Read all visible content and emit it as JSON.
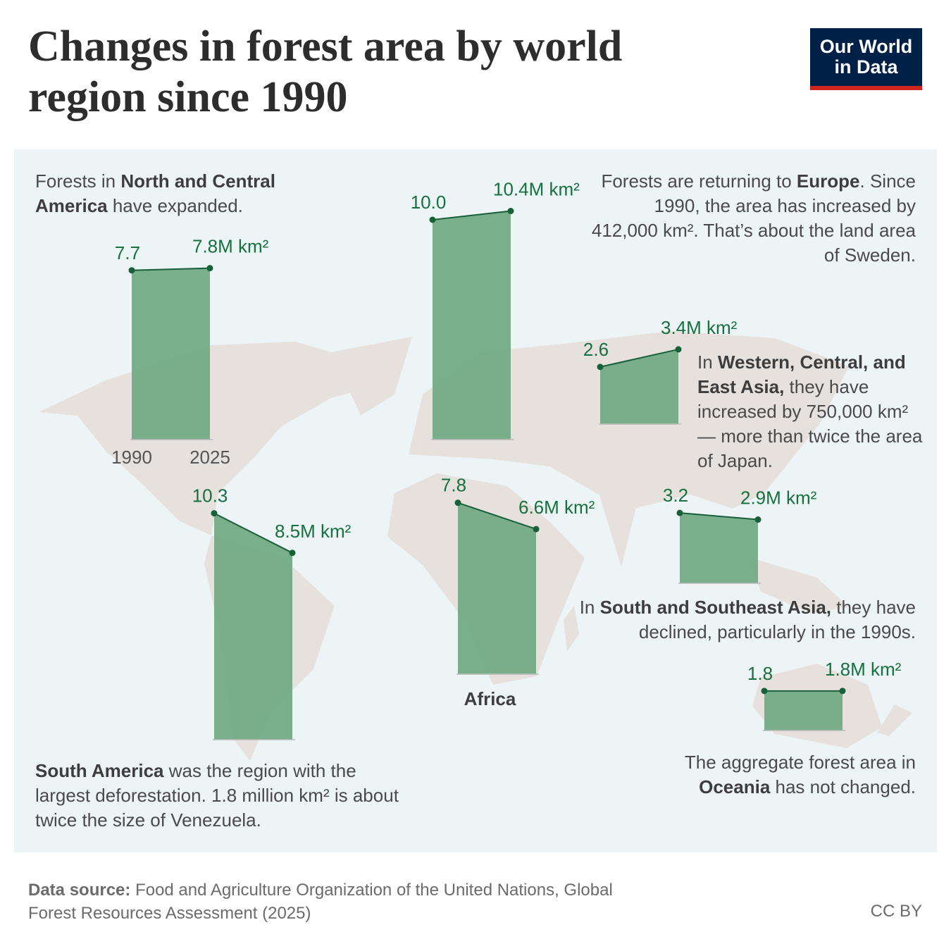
{
  "title": "Changes in forest area by world region since 1990",
  "logo": "Our World in Data",
  "annotations": [
    [
      {
        "text": "Forests in "
      },
      {
        "text": "North and Central America",
        "bold": true
      },
      {
        "text": " have expanded."
      }
    ],
    [
      {
        "text": "Forests are returning to "
      },
      {
        "text": "Europe",
        "bold": true
      },
      {
        "text": ". Since 1990, the area has increased by 412,000 km². That’s about the land area of Sweden."
      }
    ],
    [
      {
        "text": "In "
      },
      {
        "text": "Western, Central, and East Asia,",
        "bold": true
      },
      {
        "text": " they have increased by 750,000 km² — more than twice the area of Japan."
      }
    ],
    [
      {
        "text": "In "
      },
      {
        "text": "South and Southeast Asia,",
        "bold": true
      },
      {
        "text": " they have declined, particularly in the 1990s."
      }
    ],
    [
      {
        "text": "South America",
        "bold": true
      },
      {
        "text": " was the region with the largest deforestation. 1.8 million km² is about twice the size of Venezuela."
      }
    ],
    [
      {
        "text": "The aggregate forest area in "
      },
      {
        "text": "Oceania",
        "bold": true
      },
      {
        "text": " has not changed."
      }
    ]
  ],
  "chart_data": [
    {
      "type": "area",
      "x": [
        1990,
        2025
      ],
      "x_labels": [
        "1990",
        "2025"
      ],
      "values": [
        7.7,
        7.8
      ],
      "value_labels": [
        "7.7",
        "7.8M km²"
      ],
      "color": "#74ab86"
    },
    {
      "type": "area",
      "x": [
        1990,
        2025
      ],
      "values": [
        10.0,
        10.4
      ],
      "value_labels": [
        "10.0",
        "10.4M km²"
      ],
      "color": "#74ab86"
    },
    {
      "type": "area",
      "x": [
        1990,
        2025
      ],
      "values": [
        2.6,
        3.4
      ],
      "value_labels": [
        "2.6",
        "3.4M km²"
      ],
      "color": "#74ab86"
    },
    {
      "type": "area",
      "x": [
        1990,
        2025
      ],
      "values": [
        10.3,
        8.5
      ],
      "value_labels": [
        "10.3",
        "8.5M km²"
      ],
      "color": "#74ab86"
    },
    {
      "type": "area",
      "name": "Africa",
      "x": [
        1990,
        2025
      ],
      "values": [
        7.8,
        6.6
      ],
      "value_labels": [
        "7.8",
        "6.6M km²"
      ],
      "color": "#74ab86"
    },
    {
      "type": "area",
      "x": [
        1990,
        2025
      ],
      "values": [
        3.2,
        2.9
      ],
      "value_labels": [
        "3.2",
        "2.9M km²"
      ],
      "color": "#74ab86"
    },
    {
      "type": "area",
      "x": [
        1990,
        2025
      ],
      "values": [
        1.8,
        1.8
      ],
      "value_labels": [
        "1.8",
        "1.8M km²"
      ],
      "color": "#74ab86"
    }
  ],
  "footer": {
    "source_label": "Data source:",
    "source": "Food and Agriculture Organization of the United Nations, Global Forest Resources Assessment (2025)",
    "license": "CC BY"
  }
}
